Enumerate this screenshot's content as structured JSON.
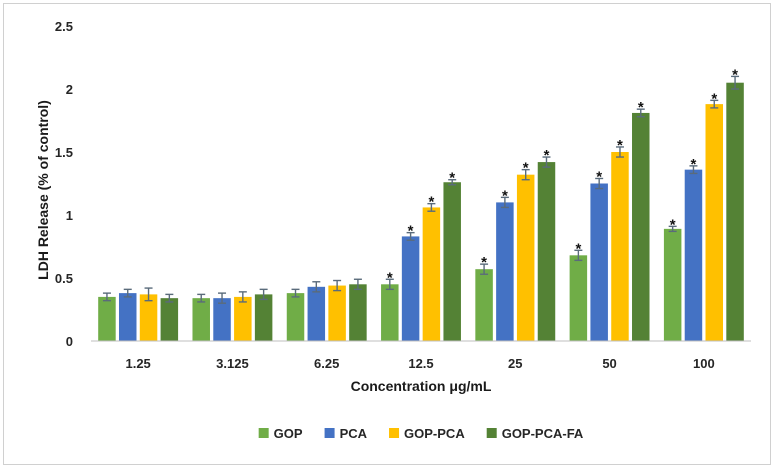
{
  "chart_data": {
    "type": "bar",
    "title": "",
    "xlabel": "Concentration μg/mL",
    "ylabel": "LDH Release (% of control)",
    "ylim": [
      0,
      2.5
    ],
    "yticks": [
      0,
      0.5,
      1,
      1.5,
      2,
      2.5
    ],
    "ytick_labels": [
      "0",
      "0.5",
      "1",
      "1.5",
      "2",
      "2.5"
    ],
    "grid": false,
    "legend_position": "bottom",
    "categories": [
      "1.25",
      "3.125",
      "6.25",
      "12.5",
      "25",
      "50",
      "100"
    ],
    "series": [
      {
        "name": "GOP",
        "color": "#70ad47",
        "values": [
          0.35,
          0.34,
          0.38,
          0.45,
          0.57,
          0.68,
          0.89
        ],
        "errors": [
          0.03,
          0.03,
          0.03,
          0.04,
          0.04,
          0.04,
          0.02
        ],
        "significant": [
          false,
          false,
          false,
          true,
          true,
          true,
          true
        ]
      },
      {
        "name": "PCA",
        "color": "#4472c4",
        "values": [
          0.38,
          0.34,
          0.43,
          0.83,
          1.1,
          1.25,
          1.36
        ],
        "errors": [
          0.03,
          0.04,
          0.04,
          0.03,
          0.04,
          0.04,
          0.03
        ],
        "significant": [
          false,
          false,
          false,
          true,
          true,
          true,
          true
        ]
      },
      {
        "name": "GOP-PCA",
        "color": "#ffc000",
        "values": [
          0.37,
          0.35,
          0.44,
          1.06,
          1.32,
          1.5,
          1.88
        ],
        "errors": [
          0.05,
          0.04,
          0.04,
          0.03,
          0.04,
          0.04,
          0.03
        ],
        "significant": [
          false,
          false,
          false,
          true,
          true,
          true,
          true
        ]
      },
      {
        "name": "GOP-PCA-FA",
        "color": "#548235",
        "values": [
          0.34,
          0.37,
          0.45,
          1.26,
          1.42,
          1.81,
          2.05
        ],
        "errors": [
          0.03,
          0.04,
          0.04,
          0.02,
          0.04,
          0.03,
          0.05
        ],
        "significant": [
          false,
          false,
          false,
          true,
          true,
          true,
          true
        ]
      }
    ],
    "significance_marker": "*"
  }
}
